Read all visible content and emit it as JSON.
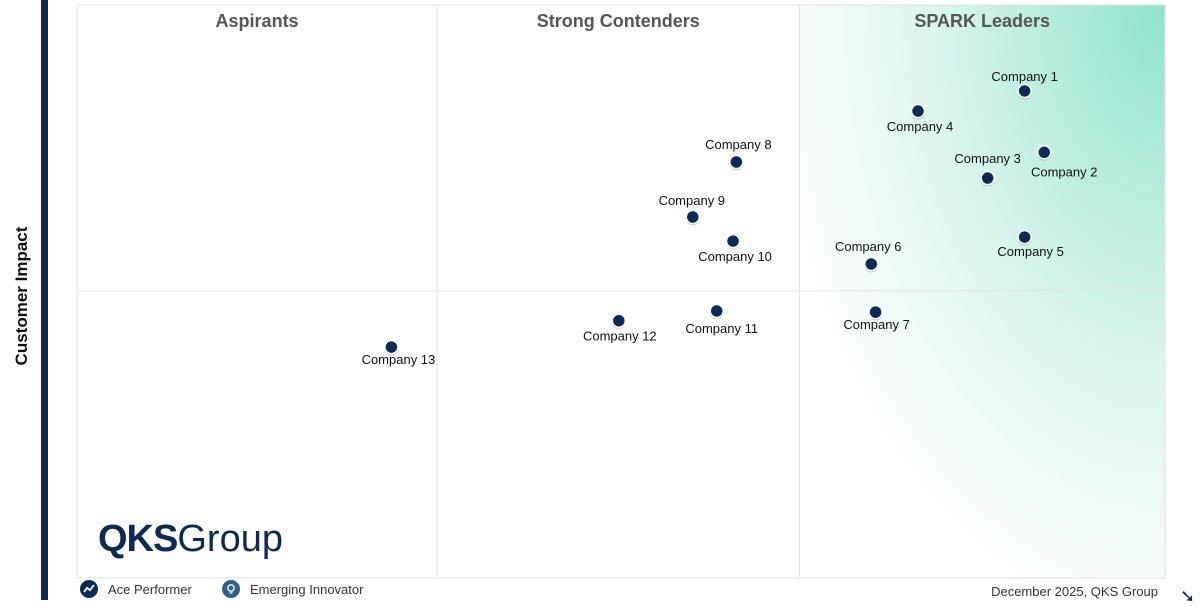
{
  "chart_data": {
    "type": "scatter",
    "title": "",
    "xlabel": "",
    "ylabel": "Customer Impact",
    "xlim": [
      0,
      100
    ],
    "ylim": [
      0,
      100
    ],
    "quadrants": [
      "Aspirants",
      "Strong Contenders",
      "SPARK Leaders"
    ],
    "dividers": {
      "x": [
        33.1,
        66.4
      ],
      "y": [
        50.1
      ]
    },
    "grid": false,
    "point_color": "#0d2a55",
    "highlight_color": "#8fe3cc",
    "points": [
      {
        "label": "Company 1",
        "x": 87.1,
        "y": 85.0
      },
      {
        "label": "Company 2",
        "x": 88.9,
        "y": 74.3
      },
      {
        "label": "Company 3",
        "x": 83.7,
        "y": 69.8
      },
      {
        "label": "Company 4",
        "x": 77.3,
        "y": 81.5
      },
      {
        "label": "Company 5",
        "x": 87.1,
        "y": 59.5
      },
      {
        "label": "Company 6",
        "x": 73.0,
        "y": 54.8
      },
      {
        "label": "Company 7",
        "x": 73.4,
        "y": 46.4
      },
      {
        "label": "Company 8",
        "x": 60.6,
        "y": 72.6
      },
      {
        "label": "Company 9",
        "x": 56.6,
        "y": 63.0
      },
      {
        "label": "Company 10",
        "x": 60.3,
        "y": 58.8
      },
      {
        "label": "Company 11",
        "x": 58.8,
        "y": 46.6
      },
      {
        "label": "Company 12",
        "x": 49.8,
        "y": 44.9
      },
      {
        "label": "Company 13",
        "x": 28.9,
        "y": 40.3
      }
    ]
  },
  "logo": {
    "bold": "QKS",
    "light": "Group"
  },
  "legend": [
    {
      "label": "Ace Performer",
      "icon": "trend-line-icon"
    },
    {
      "label": "Emerging Innovator",
      "icon": "lightbulb-icon"
    }
  ],
  "footer": "December 2025, QKS Group"
}
